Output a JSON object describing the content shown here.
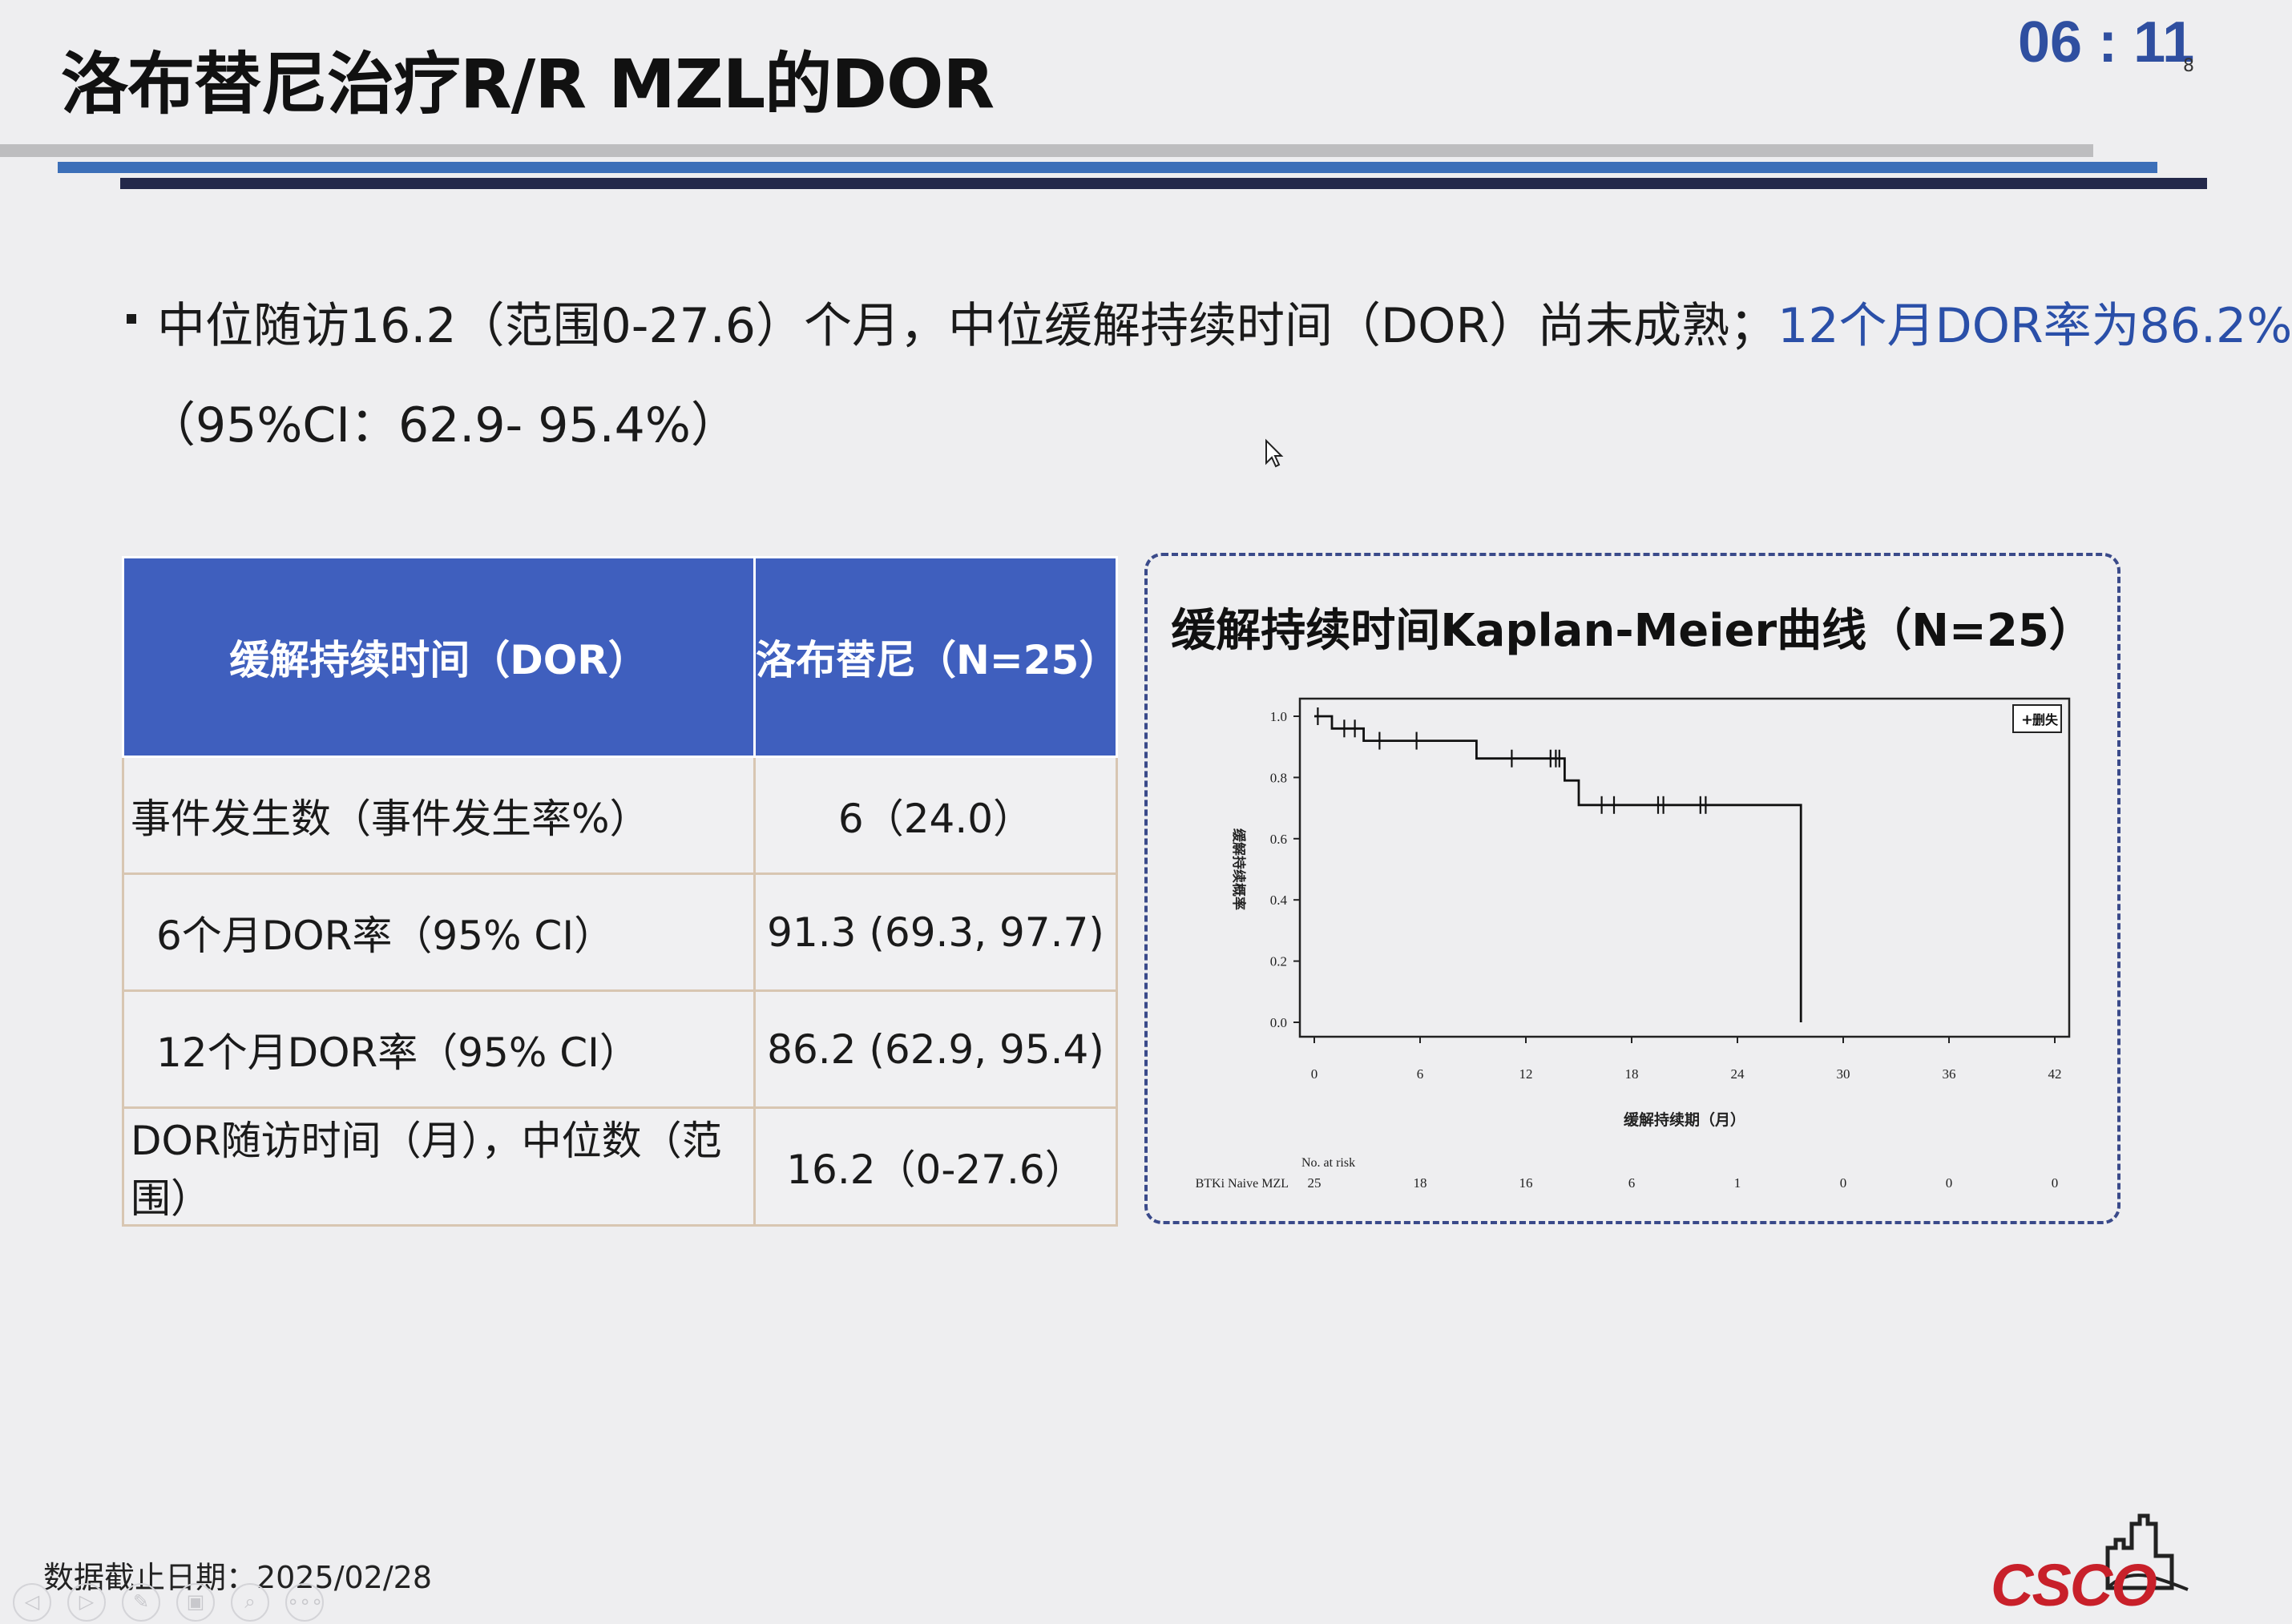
{
  "header": {
    "title": "洛布替尼治疗R/R MZL的DOR",
    "timer": "06 : 11",
    "page_number": "8"
  },
  "summary": {
    "line1_main": "中位随访16.2（范围0-27.6）个月，中位缓解持续时间（DOR）尚未成熟；",
    "line1_highlight": "12个月DOR率为86.2%",
    "line2": "（95%CI：62.9- 95.4%）",
    "highlight_color": "#2a4fa8"
  },
  "table": {
    "headers": [
      "缓解持续时间（DOR）",
      "洛布替尼（N=25）"
    ],
    "header_color": "#3f5fbe",
    "rows": [
      {
        "label": "事件发生数（事件发生率%）",
        "value": "6（24.0）"
      },
      {
        "label": "6个月DOR率（95% CI）",
        "value": "91.3 (69.3, 97.7)"
      },
      {
        "label": "12个月DOR率（95% CI）",
        "value": "86.2 (62.9, 95.4)"
      },
      {
        "label": "DOR随访时间（月），中位数（范围）",
        "value": "16.2（0-27.6）"
      }
    ]
  },
  "chart": {
    "title": "缓解持续时间Kaplan-Meier曲线（N=25）",
    "legend_label": "删失",
    "risk_header": "No. at risk",
    "risk_group": "BTKi Naive MZL"
  },
  "chart_data": {
    "type": "line",
    "xlabel": "缓解持续期（月）",
    "ylabel": "缓解持续概率",
    "xlim": [
      0,
      42
    ],
    "ylim": [
      0,
      1.0
    ],
    "xticks": [
      0,
      6,
      12,
      18,
      24,
      30,
      36,
      42
    ],
    "yticks": [
      "0.0",
      "0.2",
      "0.4",
      "0.6",
      "0.8",
      "1.0"
    ],
    "legend": "top-right",
    "series": [
      {
        "steps": [
          [
            0,
            1.0
          ],
          [
            1.0,
            1.0
          ],
          [
            1.0,
            0.96
          ],
          [
            2.8,
            0.96
          ],
          [
            2.8,
            0.92
          ],
          [
            9.2,
            0.92
          ],
          [
            9.2,
            0.862
          ],
          [
            14.2,
            0.862
          ],
          [
            14.2,
            0.79
          ],
          [
            15.0,
            0.79
          ],
          [
            15.0,
            0.71
          ],
          [
            27.6,
            0.71
          ],
          [
            27.6,
            0.0
          ]
        ],
        "censored": [
          [
            0.2,
            1.0
          ],
          [
            1.7,
            0.96
          ],
          [
            2.3,
            0.96
          ],
          [
            3.7,
            0.92
          ],
          [
            5.8,
            0.92
          ],
          [
            11.2,
            0.862
          ],
          [
            13.4,
            0.862
          ],
          [
            13.7,
            0.862
          ],
          [
            13.9,
            0.862
          ],
          [
            16.3,
            0.71
          ],
          [
            17.0,
            0.71
          ],
          [
            19.5,
            0.71
          ],
          [
            19.8,
            0.71
          ],
          [
            21.9,
            0.71
          ],
          [
            22.2,
            0.71
          ]
        ]
      }
    ],
    "at_risk": {
      "times": [
        0,
        6,
        12,
        18,
        24,
        30,
        36,
        42
      ],
      "counts": [
        "25",
        "18",
        "16",
        "6",
        "1",
        "0",
        "0",
        "0"
      ]
    }
  },
  "footer": {
    "data_cutoff": "数据截止日期：2025/02/28",
    "logo_text": "CSCO"
  },
  "nav": [
    "◁",
    "▷",
    "✎",
    "▣",
    "⌕",
    "∘∘∘"
  ]
}
